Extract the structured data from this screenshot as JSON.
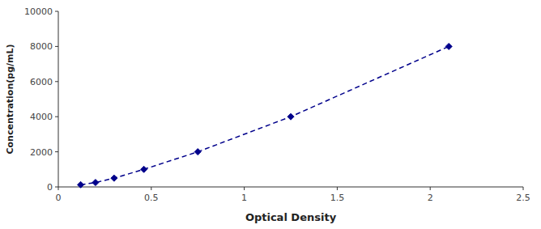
{
  "chart_data": {
    "type": "line",
    "x": [
      0.12,
      0.2,
      0.3,
      0.46,
      0.75,
      1.25,
      2.1
    ],
    "values": [
      125,
      250,
      500,
      1000,
      2000,
      4000,
      8000
    ],
    "color": "#00008B",
    "marker": "diamond",
    "line_style": "dashed",
    "xlabel": "Optical Density",
    "ylabel": "Concentration(pg/mL)",
    "xlim": [
      0,
      2.5
    ],
    "ylim": [
      0,
      10000
    ],
    "xticks": [
      0,
      0.5,
      1,
      1.5,
      2,
      2.5
    ],
    "yticks": [
      0,
      2000,
      4000,
      6000,
      8000,
      10000
    ],
    "grid": false
  }
}
